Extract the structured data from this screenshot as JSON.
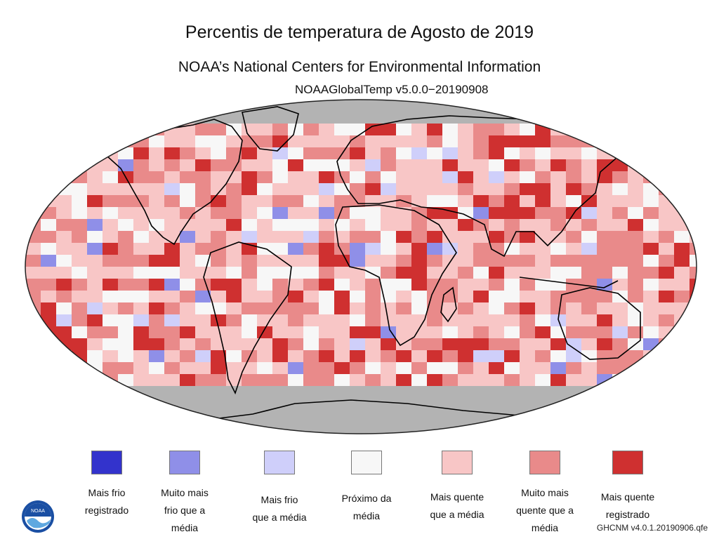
{
  "header": {
    "title": "Percentis de temperatura de Agosto de 2019",
    "subtitle": "NOAA’s National Centers for Environmental Information",
    "version": "NOAAGlobalTemp v5.0.0−20190908"
  },
  "legend": [
    {
      "label": "Mais frio\nregistrado",
      "color": "#3333cc"
    },
    {
      "label": "Muito mais\nfrio que a\nmédia",
      "color": "#8f8fe8"
    },
    {
      "label": "Mais frio\nque a média",
      "color": "#cfcffa"
    },
    {
      "label": "Próximo da\nmédia",
      "color": "#f7f7f7"
    },
    {
      "label": "Mais quente\nque a média",
      "color": "#f8c6c6"
    },
    {
      "label": "Muito mais\nquente que a\nmédia",
      "color": "#e98a8a"
    },
    {
      "label": "Mais quente\nregistrado",
      "color": "#cf3030"
    }
  ],
  "map": {
    "no_data_color": "#b3b3b3",
    "coast_color": "#000000"
  },
  "logo": {
    "text": "NOAA"
  },
  "credit": "GHCNM v4.0.1.20190906.qfe"
}
